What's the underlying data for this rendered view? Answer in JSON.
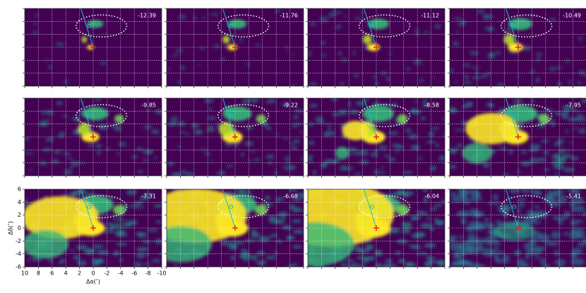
{
  "chart_data": {
    "type": "channel-map",
    "xlabel": "Δα(″)",
    "ylabel": "Δδ(″)",
    "xlim": [
      10,
      -10
    ],
    "ylim": [
      -6,
      6
    ],
    "xticks": [
      10,
      8,
      6,
      4,
      2,
      0,
      -2,
      -4,
      -6,
      -8,
      -10
    ],
    "yticks": [
      -6,
      -4,
      -2,
      0,
      2,
      4,
      6
    ],
    "grid": true,
    "panel_labels": [
      -12.39,
      -11.76,
      -11.12,
      -10.49,
      -9.85,
      -9.22,
      -8.58,
      -7.95,
      -7.31,
      -6.68,
      -6.04,
      -5.41
    ]
  }
}
